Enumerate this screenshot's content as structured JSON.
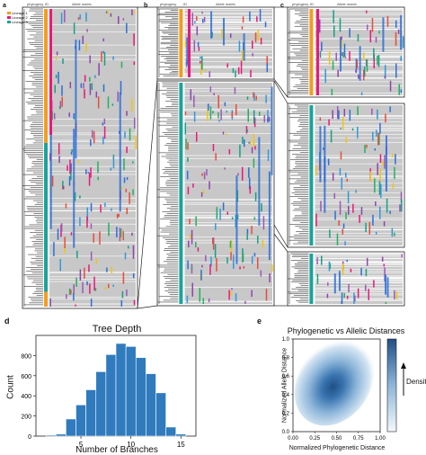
{
  "panels": {
    "a": {
      "letter": "a",
      "cols": [
        "phylogeny",
        "ID",
        "Allele matrix"
      ]
    },
    "b": {
      "letter": "b",
      "cols": [
        "phylogeny",
        "ID",
        "Allele matrix"
      ]
    },
    "c": {
      "letter": "c",
      "cols": [
        "phylogeny",
        "ID",
        "Allele matrix"
      ]
    },
    "d": {
      "letter": "d"
    },
    "e": {
      "letter": "e"
    }
  },
  "legend_a": [
    "Lineage 1",
    "Lineage 2",
    "Lineage 3"
  ],
  "colors": {
    "grey": "#c8c8c8",
    "black": "#111111",
    "orange": "#f39c1f",
    "teal": "#1aa39a",
    "magenta": "#e8197c",
    "blue": "#2b6fd6",
    "hist_fill": "#2f7bbd",
    "density_dark": "#1f4f86"
  },
  "chart_data": [
    {
      "type": "bar",
      "title": "Tree Depth",
      "xlabel": "Number of Branches",
      "ylabel": "Count",
      "x": [
        2,
        3,
        4,
        5,
        6,
        7,
        8,
        9,
        10,
        11,
        12,
        13,
        14,
        15
      ],
      "values": [
        10,
        20,
        170,
        310,
        460,
        640,
        810,
        920,
        890,
        780,
        620,
        430,
        90,
        20
      ],
      "xticks": [
        "5",
        "10",
        "15"
      ],
      "yticks": [
        "0",
        "200",
        "400",
        "600",
        "800"
      ],
      "xlim": [
        0.5,
        16.5
      ],
      "ylim": [
        0,
        1000
      ]
    },
    {
      "type": "heatmap",
      "title": "Phylogenetic vs Allelic Distances",
      "xlabel": "Normalized Phylogenetic Distance",
      "ylabel": "Normalized Allele Distance",
      "colorbar_label": "Density",
      "xticks": [
        "0.00",
        "0.25",
        "0.50",
        "0.75",
        "1.00"
      ],
      "yticks": [
        "0.0",
        "0.2",
        "0.4",
        "0.6",
        "0.8",
        "1.0"
      ],
      "xlim": [
        0,
        1
      ],
      "ylim": [
        0,
        1
      ],
      "peak": [
        0.48,
        0.42
      ]
    }
  ]
}
